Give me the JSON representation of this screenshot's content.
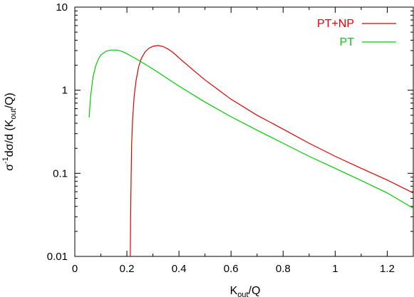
{
  "chart_data": {
    "type": "line",
    "title": "",
    "xlabel": {
      "base": "K",
      "sub": "out",
      "rest": "/Q"
    },
    "ylabel": {
      "prefix": "σ",
      "sup": "-1",
      "mid": "dσ/d (K",
      "sub": "out",
      "suffix": "/Q)"
    },
    "xlim": [
      0,
      1.3
    ],
    "ylim": [
      0.01,
      10
    ],
    "yscale": "log",
    "grid": false,
    "legend_position": "top-right",
    "x_ticks": [
      "0",
      "0.2",
      "0.4",
      "0.6",
      "0.8",
      "1",
      "1.2"
    ],
    "x_tick_values": [
      0,
      0.2,
      0.4,
      0.6,
      0.8,
      1.0,
      1.2
    ],
    "y_ticks": [
      "0.01",
      "0.1",
      "1",
      "10"
    ],
    "y_tick_values": [
      0.01,
      0.1,
      1,
      10
    ],
    "series": [
      {
        "name": "PT+NP",
        "color": "#e00000",
        "x": [
          0.213,
          0.215,
          0.218,
          0.222,
          0.228,
          0.235,
          0.245,
          0.255,
          0.27,
          0.285,
          0.3,
          0.32,
          0.34,
          0.36,
          0.38,
          0.4,
          0.45,
          0.5,
          0.6,
          0.7,
          0.8,
          0.9,
          1.0,
          1.1,
          1.2,
          1.3
        ],
        "y": [
          0.01,
          0.05,
          0.22,
          0.45,
          0.85,
          1.3,
          1.9,
          2.4,
          2.9,
          3.2,
          3.38,
          3.45,
          3.35,
          3.1,
          2.8,
          2.45,
          1.8,
          1.33,
          0.78,
          0.5,
          0.34,
          0.23,
          0.16,
          0.115,
          0.083,
          0.058
        ]
      },
      {
        "name": "PT",
        "color": "#00cc00",
        "x": [
          0.055,
          0.06,
          0.065,
          0.07,
          0.08,
          0.09,
          0.1,
          0.12,
          0.14,
          0.16,
          0.18,
          0.2,
          0.25,
          0.3,
          0.35,
          0.4,
          0.5,
          0.6,
          0.7,
          0.8,
          0.9,
          1.0,
          1.1,
          1.2,
          1.3
        ],
        "y": [
          0.47,
          0.8,
          1.1,
          1.45,
          1.95,
          2.35,
          2.65,
          2.95,
          3.05,
          3.05,
          2.95,
          2.75,
          2.25,
          1.8,
          1.42,
          1.12,
          0.72,
          0.48,
          0.33,
          0.23,
          0.16,
          0.115,
          0.082,
          0.058,
          0.038
        ]
      }
    ]
  }
}
